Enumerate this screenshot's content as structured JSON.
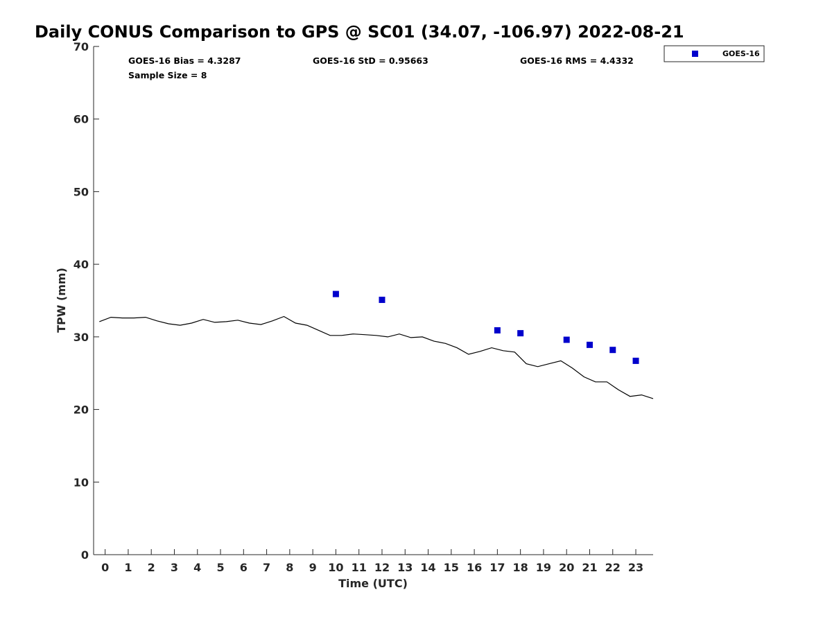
{
  "chart_data": {
    "type": "scatter",
    "title": "Daily CONUS Comparison to GPS @ SC01 (34.07, -106.97) 2022-08-21",
    "xlabel": "Time (UTC)",
    "ylabel": "TPW (mm)",
    "xlim": [
      -0.5,
      23.75
    ],
    "ylim": [
      0,
      70
    ],
    "xticks": [
      0,
      1,
      2,
      3,
      4,
      5,
      6,
      7,
      8,
      9,
      10,
      11,
      12,
      13,
      14,
      15,
      16,
      17,
      18,
      19,
      20,
      21,
      22,
      23
    ],
    "yticks": [
      0,
      10,
      20,
      30,
      40,
      50,
      60,
      70
    ],
    "grid": false,
    "legend_position": "top-right-outside",
    "stats": {
      "bias": "GOES-16 Bias = 4.3287",
      "std": "GOES-16 StD = 0.95663",
      "rms": "GOES-16 RMS = 4.4332",
      "sample": "Sample Size = 8"
    },
    "series": [
      {
        "name": "",
        "kind": "line",
        "color": "#000000",
        "x": [
          -0.25,
          0.25,
          0.75,
          1.25,
          1.75,
          2.25,
          2.75,
          3.25,
          3.75,
          4.25,
          4.75,
          5.25,
          5.75,
          6.25,
          6.75,
          7.25,
          7.75,
          8.25,
          8.75,
          9.25,
          9.75,
          10.25,
          10.75,
          11.25,
          11.75,
          12.25,
          12.75,
          13.25,
          13.75,
          14.25,
          14.75,
          15.25,
          15.75,
          16.25,
          16.75,
          17.25,
          17.75,
          18.25,
          18.75,
          19.25,
          19.75,
          20.25,
          20.75,
          21.25,
          21.75,
          22.25,
          22.75,
          23.25,
          23.75
        ],
        "y": [
          32.1,
          32.7,
          32.6,
          32.6,
          32.7,
          32.2,
          31.8,
          31.6,
          31.9,
          32.4,
          32.0,
          32.1,
          32.3,
          31.9,
          31.7,
          32.2,
          32.8,
          31.9,
          31.6,
          30.9,
          30.2,
          30.2,
          30.4,
          30.3,
          30.2,
          30.0,
          30.4,
          29.9,
          30.0,
          29.4,
          29.1,
          28.5,
          27.6,
          28.0,
          28.5,
          28.1,
          27.9,
          26.3,
          25.9,
          26.3,
          26.7,
          25.7,
          24.5,
          23.8,
          23.8,
          22.7,
          21.8,
          22.0,
          21.5
        ]
      },
      {
        "name": "GOES-16",
        "kind": "scatter",
        "marker": "square",
        "color": "#0000cc",
        "x": [
          10,
          12,
          17,
          18,
          20,
          21,
          22,
          23
        ],
        "y": [
          35.9,
          35.1,
          30.9,
          30.5,
          29.6,
          28.9,
          28.2,
          26.7
        ]
      }
    ]
  }
}
